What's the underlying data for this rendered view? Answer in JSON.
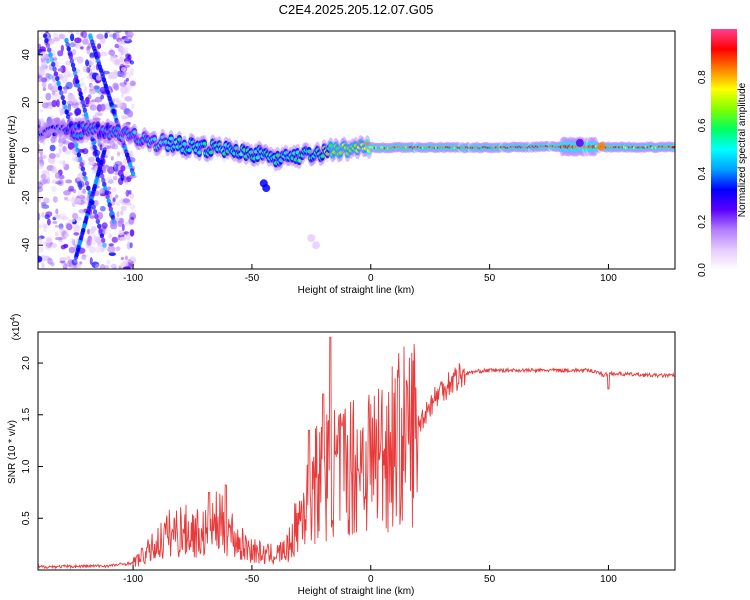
{
  "figure": {
    "title": "C2E4.2025.205.12.07.G05"
  },
  "chart_data": [
    {
      "type": "heatmap",
      "xlabel": "Height of straight line (km)",
      "ylabel": "Frequency (Hz)",
      "xlim": [
        -140,
        128
      ],
      "ylim": [
        -50,
        50
      ],
      "x_ticks": [
        -100,
        -50,
        0,
        50,
        100
      ],
      "y_ticks": [
        -40,
        -20,
        0,
        20,
        40
      ],
      "colorbar": {
        "label": "Normalized spectral amplitude",
        "range": [
          0,
          1
        ],
        "ticks": [
          "0.0",
          "0.2",
          "0.4",
          "0.6",
          "0.8"
        ],
        "colormap": [
          "#ffffff",
          "#e6ccff",
          "#b27cff",
          "#5a00ff",
          "#0000ff",
          "#00a0ff",
          "#00ffff",
          "#00ff60",
          "#80ff00",
          "#ffff00",
          "#ff8000",
          "#ff0000",
          "#ff4090"
        ]
      },
      "ridge": [
        {
          "x": -140,
          "f": 8,
          "a": 0.35
        },
        {
          "x": -120,
          "f": 8,
          "a": 0.4
        },
        {
          "x": -100,
          "f": 7,
          "a": 0.45
        },
        {
          "x": -95,
          "f": 4,
          "a": 0.5
        },
        {
          "x": -80,
          "f": 2,
          "a": 0.55
        },
        {
          "x": -60,
          "f": 0,
          "a": 0.6
        },
        {
          "x": -45,
          "f": -2,
          "a": 0.55
        },
        {
          "x": -35,
          "f": -4,
          "a": 0.55
        },
        {
          "x": -25,
          "f": -2,
          "a": 0.6
        },
        {
          "x": -15,
          "f": 0,
          "a": 0.7
        },
        {
          "x": 0,
          "f": 1,
          "a": 0.85
        },
        {
          "x": 20,
          "f": 1,
          "a": 0.9
        },
        {
          "x": 50,
          "f": 1,
          "a": 0.95
        },
        {
          "x": 80,
          "f": 1.5,
          "a": 0.95
        },
        {
          "x": 100,
          "f": 1.2,
          "a": 0.9
        },
        {
          "x": 128,
          "f": 1.2,
          "a": 0.9
        }
      ]
    },
    {
      "type": "line",
      "xlabel": "Height of straight line (km)",
      "ylabel": "SNR (10 * v/v)",
      "y_multiplier_label": "(x10",
      "y_multiplier_exp": "4",
      "xlim": [
        -140,
        128
      ],
      "ylim": [
        0,
        23000
      ],
      "x_ticks": [
        -100,
        -50,
        0,
        50,
        100
      ],
      "y_ticks": [
        {
          "v": 5000,
          "label": "0.5"
        },
        {
          "v": 10000,
          "label": "1.0"
        },
        {
          "v": 15000,
          "label": "1.5"
        },
        {
          "v": 20000,
          "label": "2.0"
        }
      ],
      "color": "#e83a3a",
      "envelope": [
        {
          "x": -140,
          "y": 300
        },
        {
          "x": -110,
          "y": 400
        },
        {
          "x": -100,
          "y": 700
        },
        {
          "x": -95,
          "y": 1500
        },
        {
          "x": -90,
          "y": 2500
        },
        {
          "x": -85,
          "y": 3500
        },
        {
          "x": -80,
          "y": 3800
        },
        {
          "x": -70,
          "y": 3500
        },
        {
          "x": -65,
          "y": 4500
        },
        {
          "x": -60,
          "y": 4000
        },
        {
          "x": -55,
          "y": 2500
        },
        {
          "x": -45,
          "y": 1500
        },
        {
          "x": -40,
          "y": 1500
        },
        {
          "x": -35,
          "y": 2000
        },
        {
          "x": -30,
          "y": 5000
        },
        {
          "x": -25,
          "y": 8000
        },
        {
          "x": -20,
          "y": 9000
        },
        {
          "x": -15,
          "y": 9500
        },
        {
          "x": -10,
          "y": 10000
        },
        {
          "x": -5,
          "y": 10500
        },
        {
          "x": 0,
          "y": 11000
        },
        {
          "x": 5,
          "y": 11500
        },
        {
          "x": 10,
          "y": 12500
        },
        {
          "x": 15,
          "y": 13000
        },
        {
          "x": 20,
          "y": 14000
        },
        {
          "x": 25,
          "y": 16000
        },
        {
          "x": 30,
          "y": 17500
        },
        {
          "x": 35,
          "y": 18500
        },
        {
          "x": 40,
          "y": 19000
        },
        {
          "x": 45,
          "y": 19200
        },
        {
          "x": 50,
          "y": 19300
        },
        {
          "x": 60,
          "y": 19300
        },
        {
          "x": 70,
          "y": 19300
        },
        {
          "x": 80,
          "y": 19300
        },
        {
          "x": 90,
          "y": 19300
        },
        {
          "x": 95,
          "y": 19200
        },
        {
          "x": 98,
          "y": 18800
        },
        {
          "x": 100,
          "y": 19000
        },
        {
          "x": 110,
          "y": 18900
        },
        {
          "x": 120,
          "y": 18800
        },
        {
          "x": 128,
          "y": 18800
        }
      ],
      "peaks": [
        {
          "x": -68,
          "y": 7500
        },
        {
          "x": -61,
          "y": 8200
        },
        {
          "x": -26,
          "y": 13500
        },
        {
          "x": -20,
          "y": 17000
        },
        {
          "x": -17,
          "y": 22500
        }
      ],
      "dip": {
        "x": 100,
        "y": 17500
      }
    }
  ]
}
